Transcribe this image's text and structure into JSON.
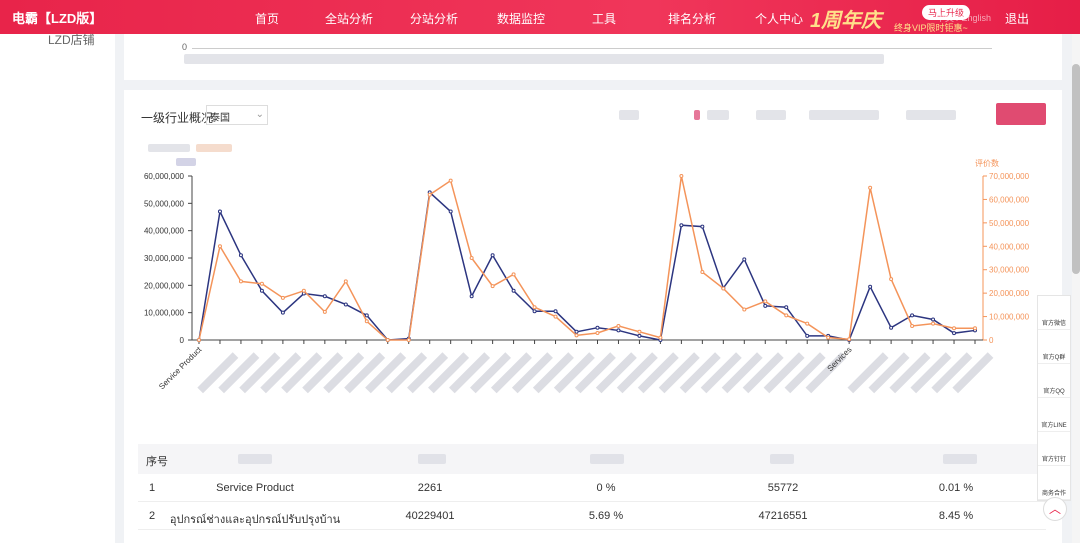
{
  "header": {
    "logo": "电霸【LZD版】",
    "menu": [
      "首页",
      "全站分析",
      "分站分析",
      "数据监控",
      "工具",
      "排名分析",
      "个人中心"
    ],
    "promo": {
      "badge": "1周年庆",
      "button": "马上升级",
      "slogan": "终身VIP限时钜惠~"
    },
    "language": "中文 / English",
    "logout": "退出"
  },
  "sidebar": {
    "item": "LZD店铺"
  },
  "top_panel": {
    "y_tick": 0
  },
  "panel": {
    "label": "一级行业概况",
    "country": "泰国"
  },
  "industry_chart": {
    "type": "line",
    "categories": [
      "Service Product",
      null,
      null,
      null,
      null,
      null,
      null,
      null,
      null,
      null,
      null,
      null,
      null,
      null,
      null,
      null,
      null,
      null,
      null,
      null,
      null,
      null,
      null,
      null,
      null,
      null,
      null,
      null,
      null,
      null,
      null,
      "Services",
      null,
      null,
      null,
      null,
      null,
      null
    ],
    "series": [
      {
        "color": "#2c3580",
        "values": [
          0,
          47000000,
          31000000,
          18000000,
          10000000,
          17000000,
          16000000,
          13000000,
          9000000,
          0,
          500000,
          54000000,
          47000000,
          16000000,
          31000000,
          18000000,
          10500000,
          10500000,
          3000000,
          4500000,
          3500000,
          1500000,
          0,
          42000000,
          41500000,
          19000000,
          29500000,
          12500000,
          12000000,
          1500000,
          1500000,
          0,
          19500000,
          4500000,
          9000000,
          7500000,
          2500000,
          3500000
        ]
      },
      {
        "color": "#f4945a",
        "axis": "y2",
        "values": [
          0,
          40000000,
          25000000,
          24000000,
          18000000,
          21000000,
          12000000,
          25000000,
          8000000,
          0,
          0,
          62000000,
          68000000,
          35000000,
          23000000,
          28000000,
          14000000,
          10000000,
          2000000,
          3000000,
          6000000,
          3500000,
          1000000,
          70000000,
          29000000,
          22000000,
          13000000,
          16500000,
          10500000,
          7000000,
          1000000,
          300000,
          65000000,
          26000000,
          6000000,
          7000000,
          5000000,
          5000000
        ]
      }
    ],
    "ylim": [
      0,
      60000000
    ],
    "yticks": [
      0,
      {
        "value": 10000000,
        "label": "10,000,000"
      },
      {
        "value": 20000000,
        "label": "20,000,000"
      },
      {
        "value": 30000000,
        "label": "30,000,000"
      },
      {
        "value": 40000000,
        "label": "40,000,000"
      },
      {
        "value": 50000000,
        "label": "50,000,000"
      },
      {
        "value": 60000000,
        "label": "60,000,000"
      }
    ],
    "y2label": "评价数",
    "y2lim": [
      0,
      70000000
    ],
    "y2ticks": [
      0,
      {
        "value": 10000000,
        "label": "10,000,000"
      },
      {
        "value": 20000000,
        "label": "20,000,000"
      },
      {
        "value": 30000000,
        "label": "30,000,000"
      },
      {
        "value": 40000000,
        "label": "40,000,000"
      },
      {
        "value": 50000000,
        "label": "50,000,000"
      },
      {
        "value": 60000000,
        "label": "60,000,000"
      },
      {
        "value": 70000000,
        "label": "70,000,000"
      }
    ]
  },
  "table": {
    "index_header": "序号",
    "rows": [
      [
        1,
        "Service Product",
        2261,
        "0 %",
        55772,
        "0.01 %"
      ],
      [
        2,
        "อุปกรณ์ช่างและอุปกรณ์ปรับปรุงบ้าน",
        40229401,
        "5.69 %",
        47216551,
        "8.45 %"
      ]
    ]
  },
  "float_bar": [
    "官方微信",
    "官方Q群",
    "官方QQ",
    "官方LINE",
    "官方钉钉",
    "商务合作"
  ]
}
